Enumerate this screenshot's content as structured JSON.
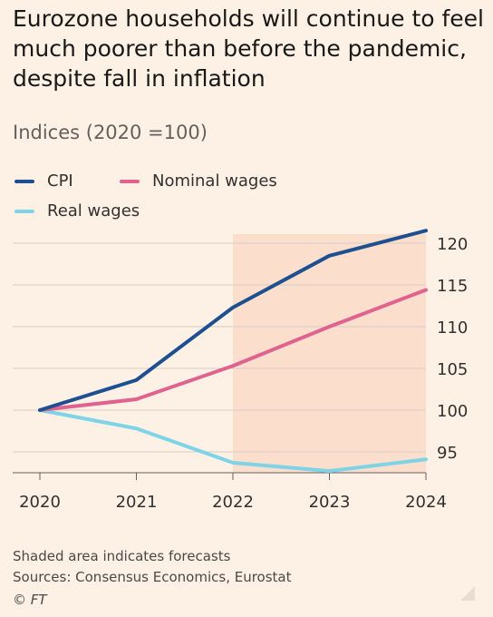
{
  "chart_data": {
    "type": "line",
    "title": "Eurozone households will continue to feel much poorer than before the pandemic, despite fall in inflation",
    "subtitle": "Indices (2020 =100)",
    "x": [
      2020,
      2021,
      2022,
      2023,
      2024
    ],
    "x_tick_labels": [
      "2020",
      "2021",
      "2022",
      "2023",
      "2024"
    ],
    "y_ticks": [
      95,
      100,
      105,
      110,
      115,
      120
    ],
    "y_tick_labels": [
      "95",
      "100",
      "105",
      "110",
      "115",
      "120"
    ],
    "ylim": [
      92,
      122
    ],
    "xlim": [
      2020,
      2024
    ],
    "forecast_range": [
      2022,
      2024
    ],
    "grid": true,
    "legend_placement": "top-left",
    "series": [
      {
        "name": "CPI",
        "color": "#1d4f91",
        "values": [
          100,
          103.6,
          112.3,
          118.5,
          121.5
        ]
      },
      {
        "name": "Nominal wages",
        "color": "#e0628f",
        "values": [
          100,
          101.3,
          105.3,
          110.0,
          114.4
        ]
      },
      {
        "name": "Real wages",
        "color": "#7fd3e6",
        "values": [
          100,
          97.8,
          93.7,
          92.7,
          94.1
        ]
      }
    ],
    "notes": "Shaded area indicates forecasts",
    "source": "Sources: Consensus Economics, Eurostat",
    "credit": "© FT"
  }
}
